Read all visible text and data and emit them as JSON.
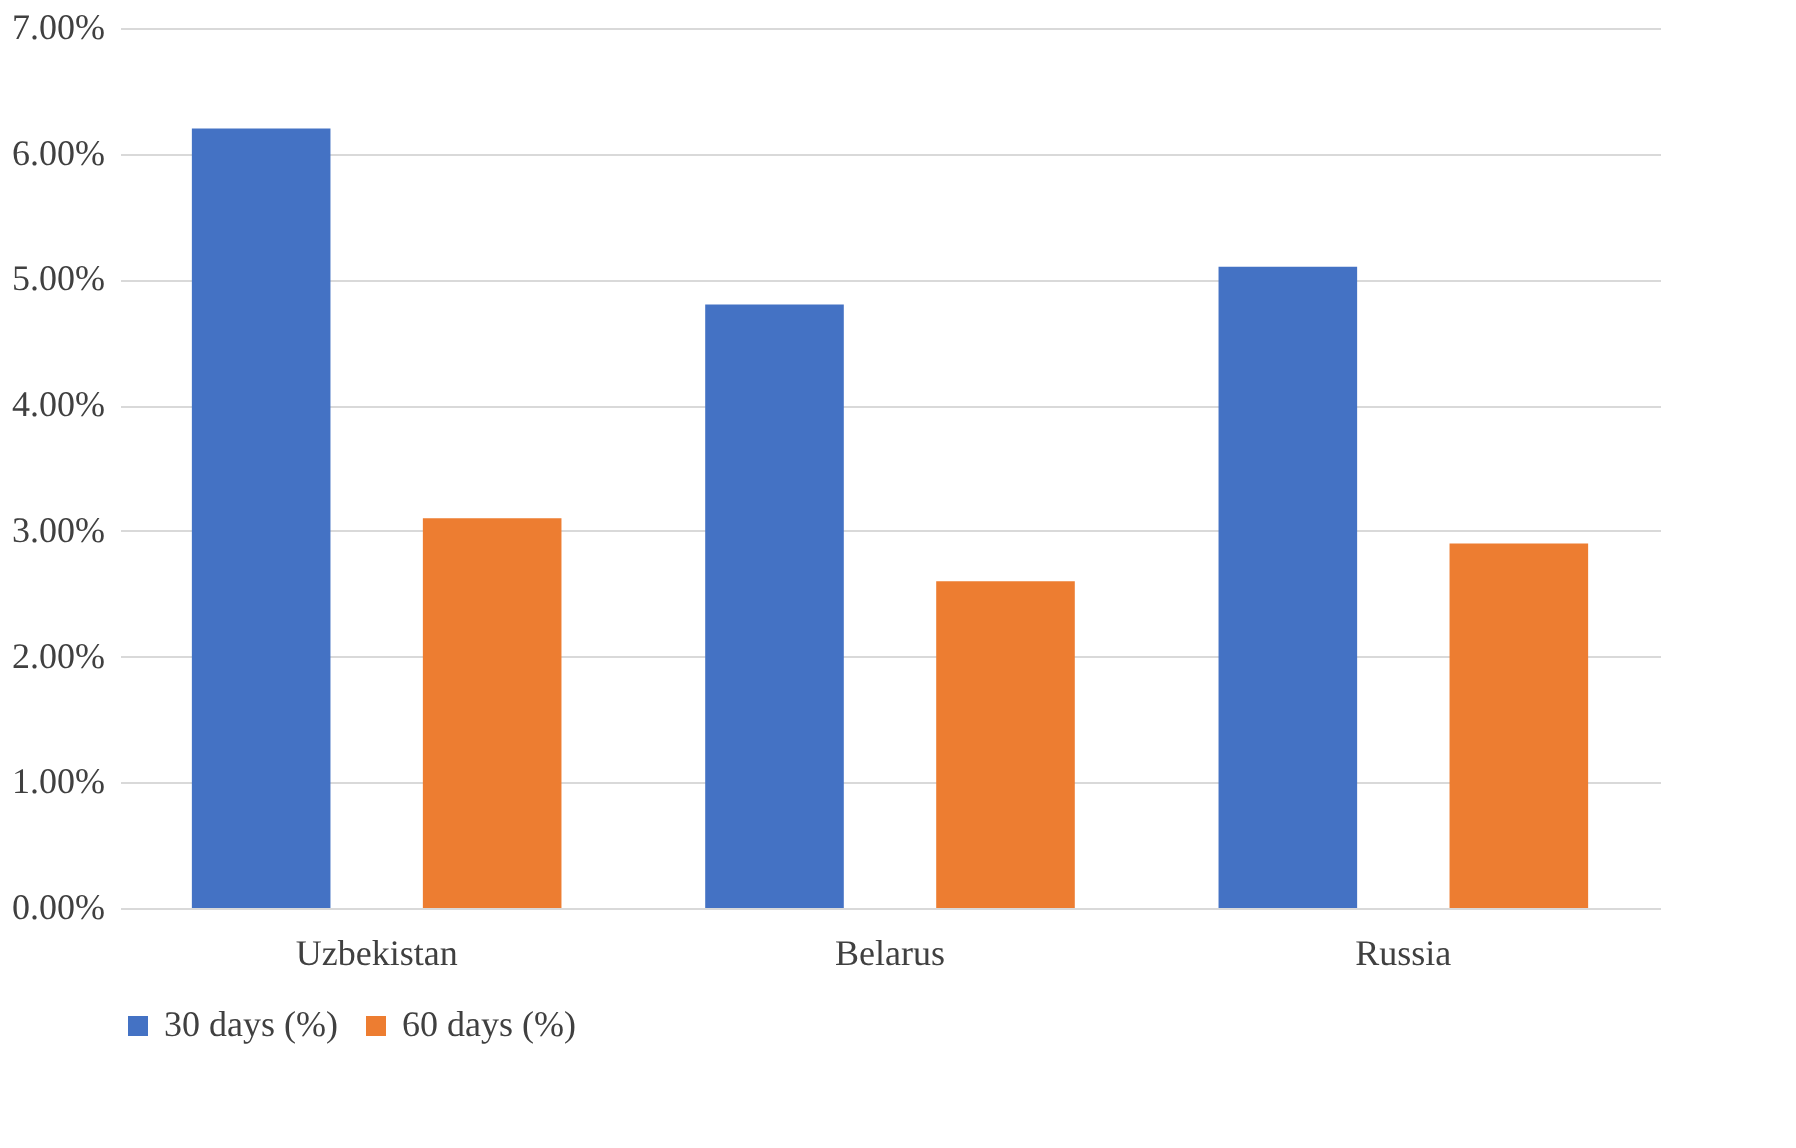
{
  "chart_data": {
    "type": "bar",
    "categories": [
      "Uzbekistan",
      "Belarus",
      "Russia"
    ],
    "series": [
      {
        "name": "30 days (%)",
        "color": "#4472c4",
        "values": [
          6.2,
          4.8,
          5.1
        ]
      },
      {
        "name": "60 days (%)",
        "color": "#ed7d31",
        "values": [
          3.1,
          2.6,
          2.9
        ]
      }
    ],
    "ylim": [
      0,
      7
    ],
    "yticks": [
      {
        "value": 0,
        "label": "0.00%"
      },
      {
        "value": 1,
        "label": "1.00%"
      },
      {
        "value": 2,
        "label": "2.00%"
      },
      {
        "value": 3,
        "label": "3.00%"
      },
      {
        "value": 4,
        "label": "4.00%"
      },
      {
        "value": 5,
        "label": "5.00%"
      },
      {
        "value": 6,
        "label": "6.00%"
      },
      {
        "value": 7,
        "label": "7.00%"
      }
    ],
    "grid": "y",
    "legend": "bottom"
  }
}
